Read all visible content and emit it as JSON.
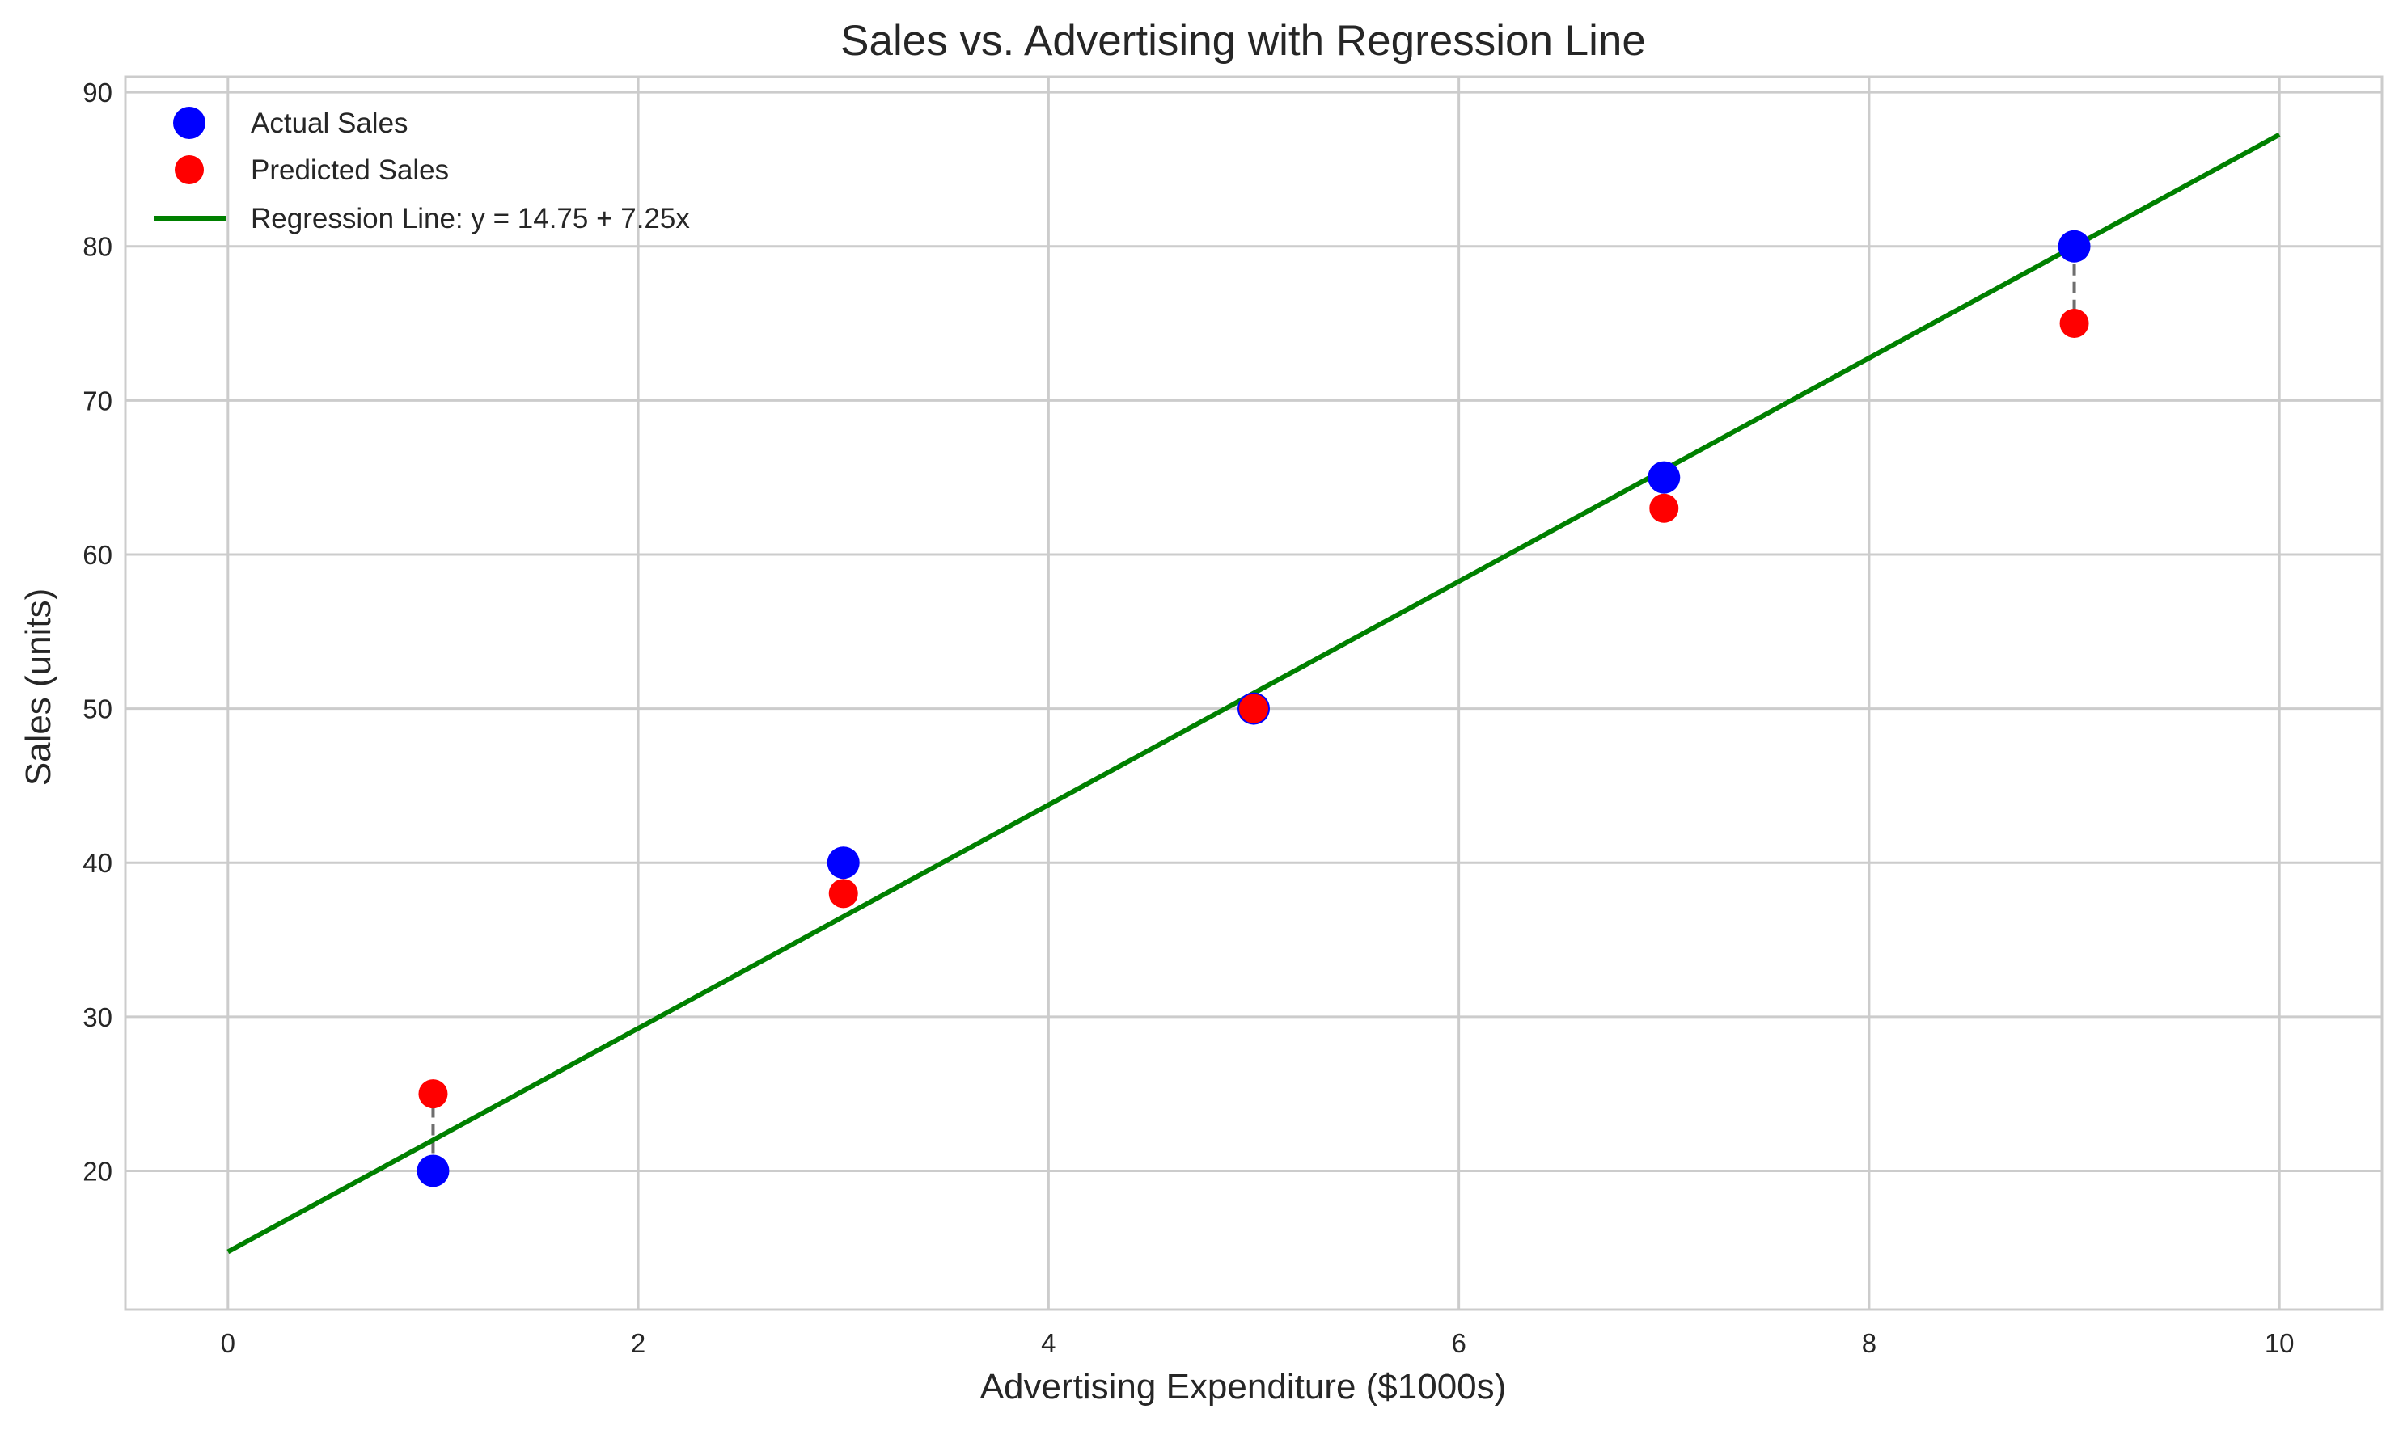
{
  "chart_data": {
    "type": "scatter",
    "title": "Sales vs. Advertising with Regression Line",
    "xlabel": "Advertising Expenditure ($1000s)",
    "ylabel": "Sales (units)",
    "xlim": [
      -0.5,
      10.5
    ],
    "ylim": [
      11,
      91
    ],
    "xticks": [
      0,
      2,
      4,
      6,
      8,
      10
    ],
    "yticks": [
      20,
      30,
      40,
      50,
      60,
      70,
      80,
      90
    ],
    "grid": true,
    "legend_position": "top-left",
    "series": [
      {
        "name": "Actual Sales",
        "kind": "scatter",
        "color": "#0000ff",
        "x": [
          1,
          3,
          5,
          7,
          9
        ],
        "y": [
          20,
          40,
          50,
          65,
          80
        ]
      },
      {
        "name": "Predicted Sales",
        "kind": "scatter",
        "color": "#ff0000",
        "x": [
          1,
          3,
          5,
          7,
          9
        ],
        "y": [
          25,
          38,
          50,
          63,
          75
        ]
      },
      {
        "name": "Regression Line: y = 14.75 + 7.25x",
        "kind": "line",
        "color": "#008000",
        "x": [
          0,
          10
        ],
        "y": [
          14.75,
          87.25
        ]
      }
    ],
    "residual_lines": {
      "color": "#555555",
      "style": "dashed"
    }
  }
}
